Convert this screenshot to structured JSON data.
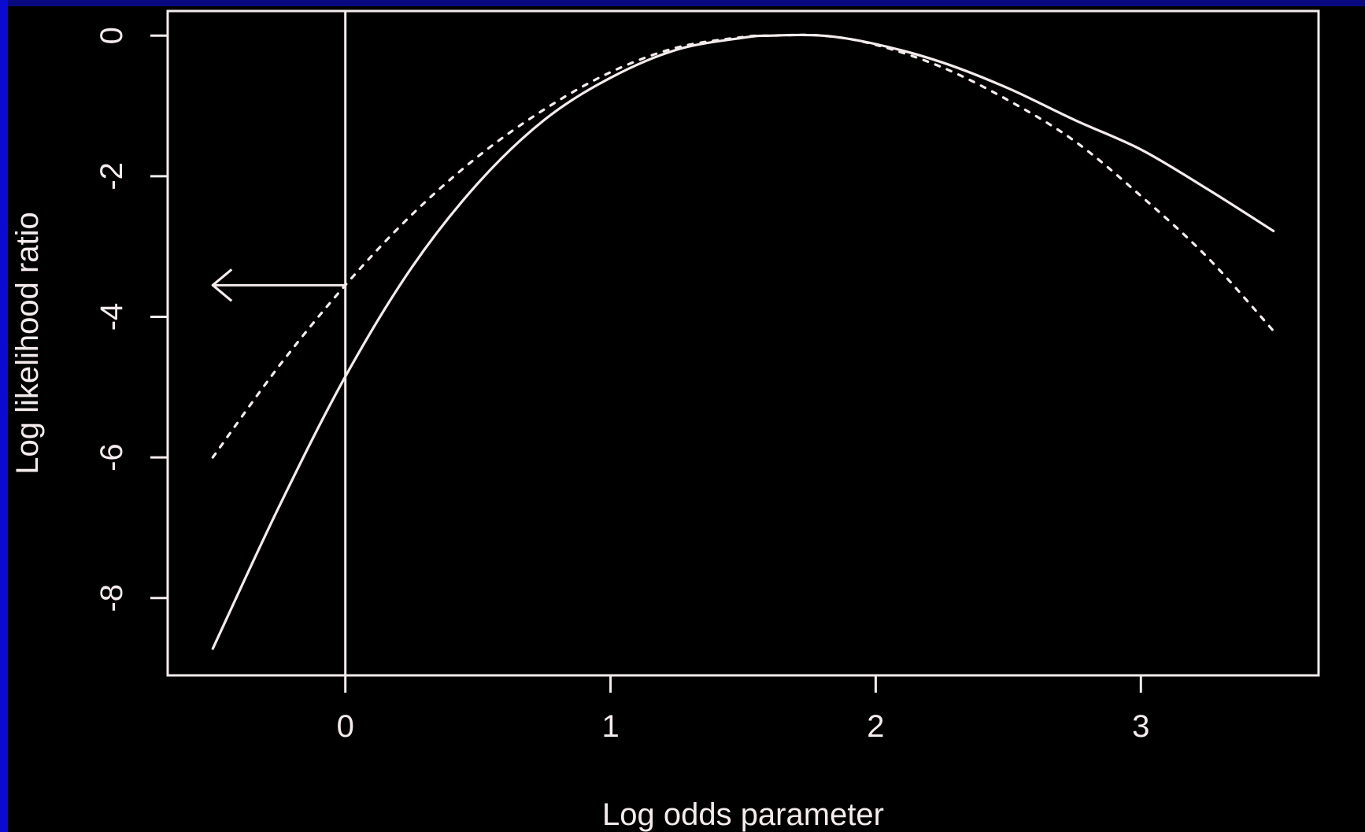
{
  "chart_data": {
    "type": "line",
    "title": "",
    "xlabel": "Log odds parameter",
    "ylabel": "Log likelihood ratio",
    "xlim": [
      -0.67,
      3.67
    ],
    "ylim": [
      -9.1,
      0.35
    ],
    "x_ticks": [
      {
        "value": 0,
        "label": "0"
      },
      {
        "value": 1,
        "label": "1"
      },
      {
        "value": 2,
        "label": "2"
      },
      {
        "value": 3,
        "label": "3"
      }
    ],
    "y_ticks": [
      {
        "value": 0,
        "label": "0"
      },
      {
        "value": -2,
        "label": "-2"
      },
      {
        "value": -4,
        "label": "-4"
      },
      {
        "value": -6,
        "label": "-6"
      },
      {
        "value": -8,
        "label": "-8"
      }
    ],
    "grid": false,
    "series": [
      {
        "style": "solid",
        "x": [
          -0.5,
          -0.25,
          0,
          0.25,
          0.5,
          0.75,
          1,
          1.25,
          1.5,
          1.6,
          1.8,
          2,
          2.25,
          2.5,
          2.75,
          3,
          3.25,
          3.5
        ],
        "y": [
          -8.72,
          -6.7,
          -4.85,
          -3.3,
          -2.1,
          -1.2,
          -0.6,
          -0.2,
          -0.03,
          0,
          0,
          -0.12,
          -0.38,
          -0.75,
          -1.2,
          -1.62,
          -2.18,
          -2.78
        ]
      },
      {
        "style": "dashed",
        "x": [
          -0.5,
          -0.25,
          0,
          0.25,
          0.5,
          0.75,
          1,
          1.25,
          1.5,
          1.6,
          1.8,
          2,
          2.25,
          2.5,
          2.75,
          3,
          3.25,
          3.5
        ],
        "y": [
          -6.0,
          -4.7,
          -3.55,
          -2.55,
          -1.72,
          -1.05,
          -0.52,
          -0.17,
          -0.02,
          0,
          0,
          -0.13,
          -0.45,
          -0.92,
          -1.5,
          -2.28,
          -3.15,
          -4.2
        ]
      }
    ],
    "annotations": [
      {
        "type": "vline",
        "x": 0
      },
      {
        "type": "arrow",
        "direction": "left",
        "from_x": 0,
        "to_x": -0.5,
        "y": -3.55
      }
    ],
    "colors": {
      "background": "#000000",
      "foreground": "#f4ecec",
      "slide_edge": "#0a0ad0"
    }
  }
}
